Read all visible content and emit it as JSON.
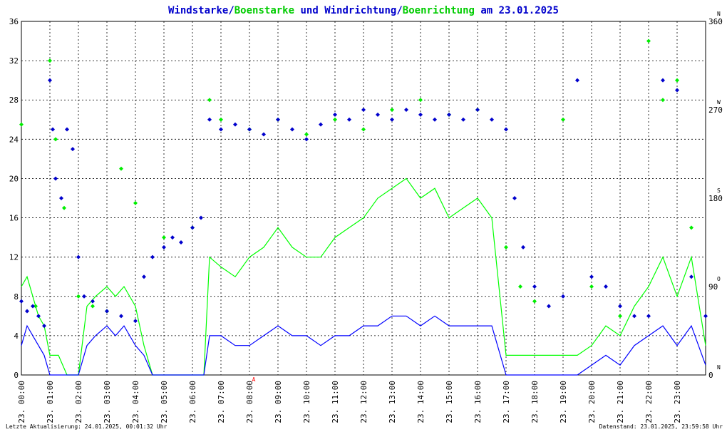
{
  "title": {
    "part1": "Windstarke",
    "sep1": "/",
    "part2": "Boenstarke",
    "part3": " und ",
    "part4": "Windrichtung",
    "sep2": "/",
    "part5": "Boenrichtung",
    "part6": " am 23.01.2025"
  },
  "footer": {
    "left": "Letzte Aktualisierung: 24.01.2025, 00:01:32 Uhr",
    "right": "Datenstand: 23.01.2025, 23:59:58 Uhr"
  },
  "colors": {
    "wind": "#0000ff",
    "gust": "#00ff00",
    "winddir": "#0000cc",
    "gustdir": "#00ee00",
    "title_blue": "#0000cc",
    "title_green": "#00cc00",
    "grid": "#000000",
    "marker_red": "#ff0000"
  },
  "chart_data": {
    "type": "line",
    "title": "Windstarke/Boenstarke und Windrichtung/Boenrichtung am 23.01.2025",
    "x_tick_labels": [
      "23. 00:00",
      "23. 01:00",
      "23. 02:00",
      "23. 03:00",
      "23. 04:00",
      "23. 05:00",
      "23. 06:00",
      "23. 07:00",
      "23. 08:00",
      "23. 09:00",
      "23. 10:00",
      "23. 11:00",
      "23. 12:00",
      "23. 13:00",
      "23. 14:00",
      "23. 15:00",
      "23. 16:00",
      "23. 17:00",
      "23. 18:00",
      "23. 19:00",
      "23. 20:00",
      "23. 21:00",
      "23. 22:00",
      "23. 23:00"
    ],
    "y_left_ticks": [
      "0",
      "4",
      "8",
      "12",
      "16",
      "20",
      "24",
      "28",
      "32",
      "36"
    ],
    "y_right_ticks": [
      "0",
      "90",
      "180",
      "270",
      "360"
    ],
    "y_right_dir_labels": [
      "N",
      "O",
      "S",
      "W",
      "N"
    ],
    "xlim_hours": [
      0,
      24
    ],
    "ylim_left": [
      0,
      36
    ],
    "ylim_right": [
      0,
      360
    ],
    "grid": true,
    "marker_label": "A",
    "marker_hour": 8.15,
    "series": [
      {
        "name": "Windstarke",
        "axis": "left",
        "style": "line",
        "hours": [
          0,
          0.2,
          0.4,
          0.6,
          0.8,
          1.0,
          1.3,
          1.6,
          2.0,
          2.3,
          2.6,
          3.0,
          3.3,
          3.6,
          4.0,
          4.3,
          4.6,
          5.0,
          5.5,
          6.0,
          6.4,
          6.6,
          7.0,
          7.5,
          8.0,
          8.5,
          9.0,
          9.5,
          10.0,
          10.5,
          11.0,
          11.5,
          12.0,
          12.5,
          13.0,
          13.5,
          14.0,
          14.5,
          15.0,
          15.5,
          16.0,
          16.5,
          17.0,
          17.5,
          18.0,
          18.5,
          19.0,
          19.5,
          20.0,
          20.5,
          21.0,
          21.5,
          22.0,
          22.5,
          23.0,
          23.5,
          24.0
        ],
        "values": [
          3,
          5,
          4,
          3,
          2,
          0,
          0,
          0,
          0,
          3,
          4,
          5,
          4,
          5,
          3,
          2,
          0,
          0,
          0,
          0,
          0,
          4,
          4,
          3,
          3,
          4,
          5,
          4,
          4,
          3,
          4,
          4,
          5,
          5,
          6,
          6,
          5,
          6,
          5,
          5,
          5,
          5,
          0,
          0,
          0,
          0,
          0,
          0,
          1,
          2,
          1,
          3,
          4,
          5,
          3,
          5,
          1
        ]
      },
      {
        "name": "Boenstarke",
        "axis": "left",
        "style": "line",
        "hours": [
          0,
          0.2,
          0.4,
          0.6,
          0.8,
          1.0,
          1.3,
          1.6,
          2.0,
          2.3,
          2.6,
          3.0,
          3.3,
          3.6,
          4.0,
          4.3,
          4.6,
          5.0,
          5.5,
          6.0,
          6.4,
          6.6,
          7.0,
          7.5,
          8.0,
          8.5,
          9.0,
          9.5,
          10.0,
          10.5,
          11.0,
          11.5,
          12.0,
          12.5,
          13.0,
          13.5,
          14.0,
          14.5,
          15.0,
          15.5,
          16.0,
          16.5,
          17.0,
          17.5,
          18.0,
          18.5,
          19.0,
          19.5,
          20.0,
          20.5,
          21.0,
          21.5,
          22.0,
          22.5,
          23.0,
          23.5,
          24.0
        ],
        "values": [
          9,
          10,
          8,
          6,
          5,
          2,
          2,
          0,
          0,
          7,
          8,
          9,
          8,
          9,
          7,
          3,
          0,
          0,
          0,
          0,
          0,
          12,
          11,
          10,
          12,
          13,
          15,
          13,
          12,
          12,
          14,
          15,
          16,
          18,
          19,
          20,
          18,
          19,
          16,
          17,
          18,
          16,
          2,
          2,
          2,
          2,
          2,
          2,
          3,
          5,
          4,
          7,
          9,
          12,
          8,
          12,
          3
        ]
      },
      {
        "name": "Windrichtung",
        "axis": "right",
        "style": "points",
        "hours": [
          0,
          0.2,
          0.4,
          0.6,
          0.8,
          1.0,
          1.1,
          1.2,
          1.4,
          1.6,
          1.8,
          2.0,
          2.2,
          2.5,
          3.0,
          3.5,
          4.0,
          4.3,
          4.6,
          5.0,
          5.3,
          5.6,
          6.0,
          6.3,
          6.6,
          7.0,
          7.5,
          8.0,
          8.5,
          9.0,
          9.5,
          10.0,
          10.5,
          11.0,
          11.5,
          12.0,
          12.5,
          13.0,
          13.5,
          14.0,
          14.5,
          15.0,
          15.5,
          16.0,
          16.5,
          17.0,
          17.3,
          17.6,
          18.0,
          18.5,
          19.0,
          19.5,
          20.0,
          20.5,
          21.0,
          21.5,
          22.0,
          22.5,
          23.0,
          23.5,
          24.0
        ],
        "values": [
          75,
          65,
          70,
          60,
          50,
          300,
          250,
          200,
          180,
          250,
          230,
          120,
          80,
          75,
          65,
          60,
          55,
          100,
          120,
          130,
          140,
          135,
          150,
          160,
          260,
          250,
          255,
          250,
          245,
          260,
          250,
          240,
          255,
          265,
          260,
          270,
          265,
          260,
          270,
          265,
          260,
          265,
          260,
          270,
          260,
          250,
          180,
          130,
          90,
          70,
          80,
          300,
          100,
          90,
          70,
          60,
          60,
          300,
          290,
          100,
          60
        ]
      },
      {
        "name": "Boenrichtung",
        "axis": "right",
        "style": "points",
        "hours": [
          0,
          0.5,
          1.0,
          1.2,
          1.5,
          2.0,
          2.5,
          3.0,
          3.5,
          4.0,
          5.0,
          6.0,
          6.6,
          7.0,
          8.0,
          9.0,
          10.0,
          11.0,
          12.0,
          13.0,
          14.0,
          15.0,
          16.0,
          17.0,
          17.5,
          18.0,
          19.0,
          20.0,
          21.0,
          22.0,
          22.5,
          23.0,
          23.5
        ],
        "values": [
          255,
          70,
          320,
          240,
          170,
          80,
          70,
          65,
          210,
          175,
          140,
          150,
          280,
          260,
          250,
          260,
          245,
          260,
          250,
          270,
          280,
          265,
          270,
          130,
          90,
          75,
          260,
          90,
          60,
          340,
          280,
          300,
          150
        ]
      }
    ]
  }
}
